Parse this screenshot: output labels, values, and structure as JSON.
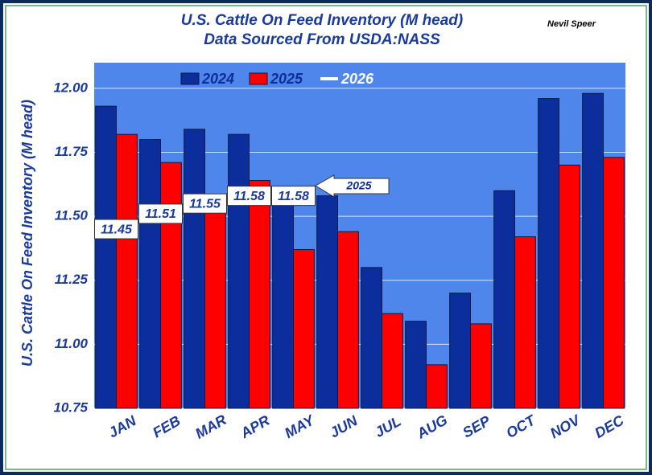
{
  "chart_data": {
    "type": "bar",
    "title": "U.S. Cattle On Feed Inventory (M head)",
    "subtitle": "Data Sourced From USDA:NASS",
    "author": "Nevil Speer",
    "y_label": "U.S. Cattle On Feed Inventory (M head)",
    "annotation": "2025",
    "categories": [
      "JAN",
      "FEB",
      "MAR",
      "APR",
      "MAY",
      "JUN",
      "JUL",
      "AUG",
      "SEP",
      "OCT",
      "NOV",
      "DEC"
    ],
    "series": [
      {
        "name": "2024",
        "color": "#0b2e9c",
        "values": [
          11.93,
          11.8,
          11.84,
          11.82,
          11.57,
          11.58,
          11.3,
          11.09,
          11.2,
          11.6,
          11.96,
          11.98
        ]
      },
      {
        "name": "2025",
        "color": "#ff0000",
        "values": [
          11.82,
          11.71,
          11.52,
          11.64,
          11.37,
          11.44,
          11.12,
          10.92,
          11.08,
          11.42,
          11.7,
          11.73
        ]
      },
      {
        "name": "2026",
        "color": "#ffffff",
        "values": [
          11.45,
          11.51,
          11.55,
          11.58,
          11.58,
          null,
          null,
          null,
          null,
          null,
          null,
          null
        ]
      }
    ],
    "ylim": [
      10.75,
      12.1
    ],
    "yticks": [
      {
        "value": 10.75,
        "label": "10.75"
      },
      {
        "value": 11,
        "label": "11.00"
      },
      {
        "value": 11.25,
        "label": "11.25"
      },
      {
        "value": 11.5,
        "label": "11.50"
      },
      {
        "value": 11.75,
        "label": "11.75"
      },
      {
        "value": 12,
        "label": "12.00"
      }
    ],
    "grid": true,
    "legend": "top",
    "plot_background": "#4f86ec"
  }
}
